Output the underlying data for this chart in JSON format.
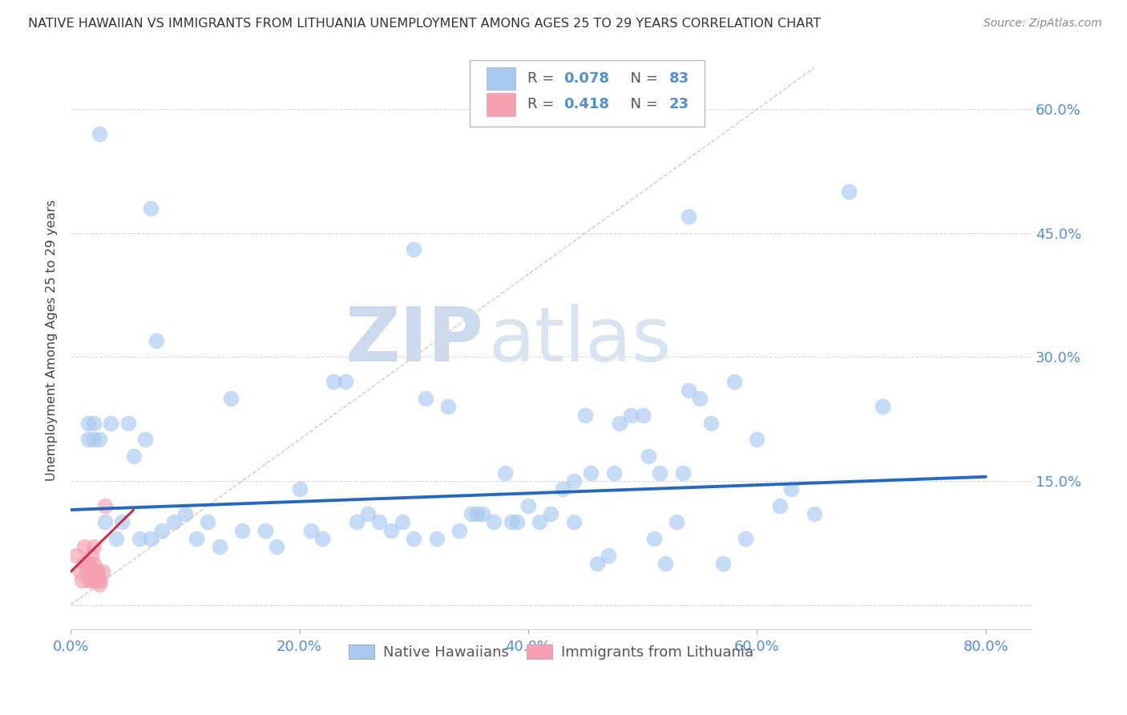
{
  "title": "NATIVE HAWAIIAN VS IMMIGRANTS FROM LITHUANIA UNEMPLOYMENT AMONG AGES 25 TO 29 YEARS CORRELATION CHART",
  "source": "Source: ZipAtlas.com",
  "ylabel": "Unemployment Among Ages 25 to 29 years",
  "xlim": [
    0.0,
    0.84
  ],
  "ylim": [
    -0.03,
    0.67
  ],
  "x_tick_vals": [
    0.0,
    0.2,
    0.4,
    0.6,
    0.8
  ],
  "x_tick_labels": [
    "0.0%",
    "20.0%",
    "40.0%",
    "60.0%",
    "80.0%"
  ],
  "y_tick_vals": [
    0.0,
    0.15,
    0.3,
    0.45,
    0.6
  ],
  "y_tick_labels": [
    "",
    "15.0%",
    "30.0%",
    "45.0%",
    "60.0%"
  ],
  "blue_scatter_color": "#a8c8f0",
  "pink_scatter_color": "#f4a0b0",
  "blue_line_color": "#2468c0",
  "pink_line_color": "#c83050",
  "diag_line_color": "#e0b8c0",
  "grid_color": "#d8d8d8",
  "tick_color": "#5090d0",
  "title_color": "#333333",
  "source_color": "#888888",
  "watermark_color": "#dde8f5",
  "legend_R_color": "#5090d0",
  "legend_N_color": "#5090d0",
  "blue_line_x": [
    0.0,
    0.8
  ],
  "blue_line_y": [
    0.115,
    0.155
  ],
  "pink_line_x": [
    0.0,
    0.055
  ],
  "pink_line_y": [
    0.04,
    0.115
  ],
  "diag_line_x": [
    0.0,
    0.65
  ],
  "diag_line_y": [
    0.0,
    0.65
  ],
  "bx": [
    0.025,
    0.07,
    0.075,
    0.3,
    0.54,
    0.015,
    0.015,
    0.02,
    0.02,
    0.025,
    0.03,
    0.035,
    0.04,
    0.045,
    0.05,
    0.055,
    0.06,
    0.065,
    0.07,
    0.08,
    0.09,
    0.1,
    0.11,
    0.12,
    0.13,
    0.14,
    0.15,
    0.17,
    0.18,
    0.2,
    0.21,
    0.22,
    0.23,
    0.24,
    0.25,
    0.26,
    0.27,
    0.28,
    0.29,
    0.3,
    0.31,
    0.32,
    0.33,
    0.34,
    0.35,
    0.355,
    0.36,
    0.37,
    0.38,
    0.385,
    0.39,
    0.4,
    0.41,
    0.42,
    0.43,
    0.44,
    0.44,
    0.45,
    0.455,
    0.46,
    0.47,
    0.475,
    0.48,
    0.49,
    0.5,
    0.505,
    0.51,
    0.515,
    0.52,
    0.53,
    0.535,
    0.54,
    0.55,
    0.56,
    0.57,
    0.58,
    0.59,
    0.6,
    0.62,
    0.63,
    0.65,
    0.68,
    0.71
  ],
  "by": [
    0.57,
    0.48,
    0.32,
    0.43,
    0.47,
    0.2,
    0.22,
    0.2,
    0.22,
    0.2,
    0.1,
    0.22,
    0.08,
    0.1,
    0.22,
    0.18,
    0.08,
    0.2,
    0.08,
    0.09,
    0.1,
    0.11,
    0.08,
    0.1,
    0.07,
    0.25,
    0.09,
    0.09,
    0.07,
    0.14,
    0.09,
    0.08,
    0.27,
    0.27,
    0.1,
    0.11,
    0.1,
    0.09,
    0.1,
    0.08,
    0.25,
    0.08,
    0.24,
    0.09,
    0.11,
    0.11,
    0.11,
    0.1,
    0.16,
    0.1,
    0.1,
    0.12,
    0.1,
    0.11,
    0.14,
    0.15,
    0.1,
    0.23,
    0.16,
    0.05,
    0.06,
    0.16,
    0.22,
    0.23,
    0.23,
    0.18,
    0.08,
    0.16,
    0.05,
    0.1,
    0.16,
    0.26,
    0.25,
    0.22,
    0.05,
    0.27,
    0.08,
    0.2,
    0.12,
    0.14,
    0.11,
    0.5,
    0.24
  ],
  "px": [
    0.005,
    0.008,
    0.01,
    0.012,
    0.012,
    0.014,
    0.015,
    0.015,
    0.016,
    0.018,
    0.018,
    0.019,
    0.02,
    0.02,
    0.02,
    0.021,
    0.022,
    0.023,
    0.024,
    0.025,
    0.026,
    0.028,
    0.03
  ],
  "py": [
    0.06,
    0.04,
    0.03,
    0.05,
    0.07,
    0.04,
    0.03,
    0.05,
    0.05,
    0.04,
    0.06,
    0.03,
    0.03,
    0.05,
    0.07,
    0.03,
    0.04,
    0.03,
    0.04,
    0.025,
    0.03,
    0.04,
    0.12
  ]
}
